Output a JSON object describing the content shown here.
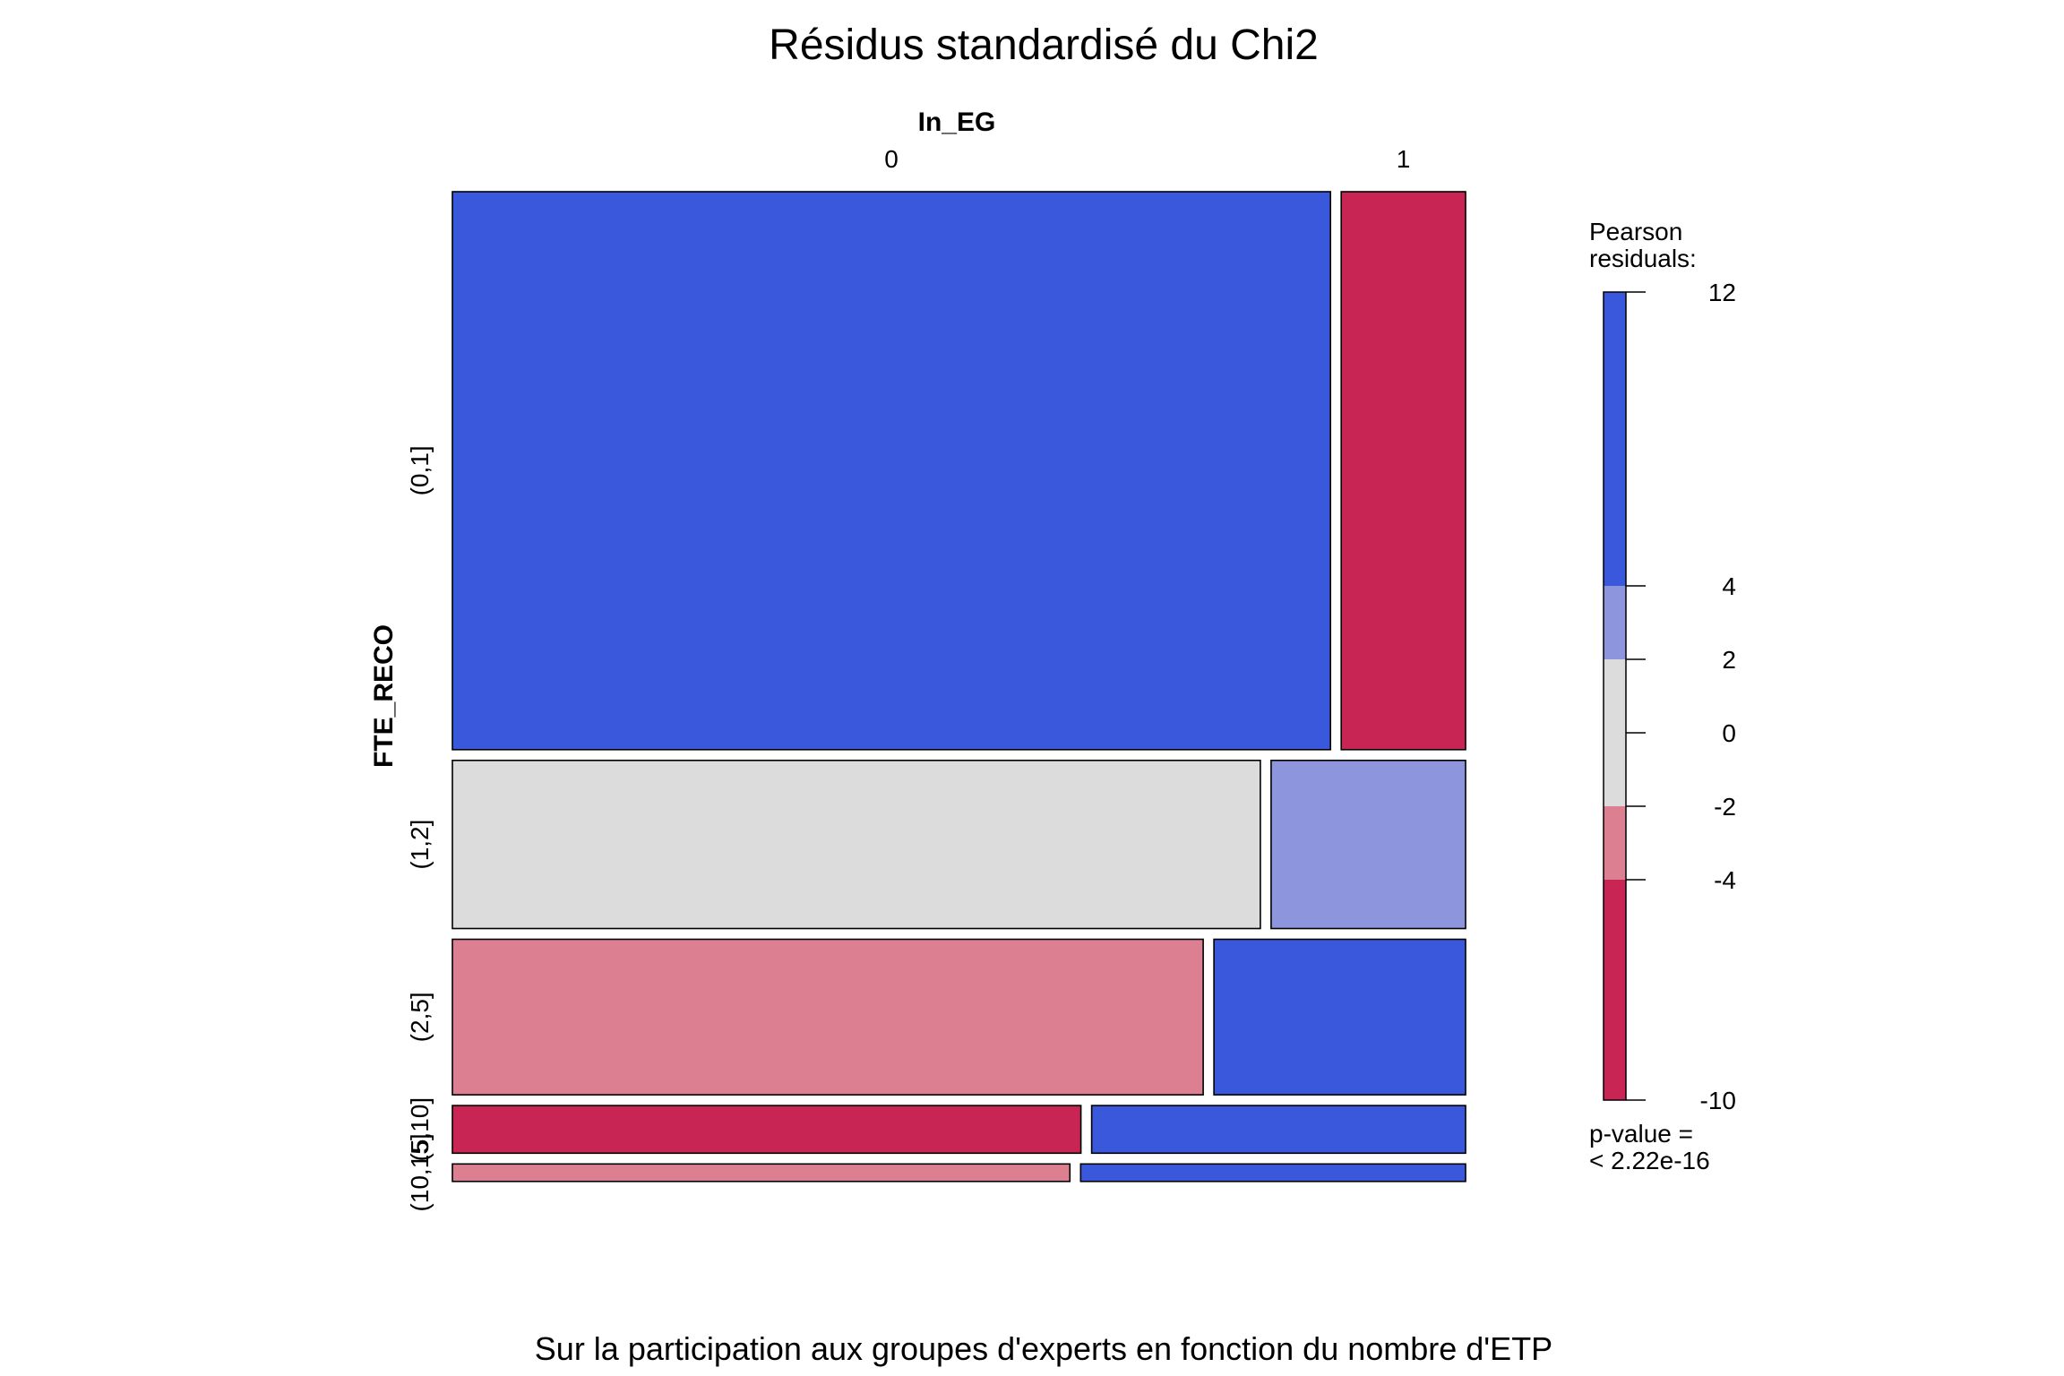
{
  "chart_data": {
    "type": "mosaic",
    "title": "Résidus standardisé du Chi2",
    "subtitle": "Sur la participation aux groupes d'experts en fonction du nombre d'ETP",
    "column_variable": "In_EG",
    "row_variable": "FTE_RECO",
    "columns": [
      "0",
      "1"
    ],
    "rows": [
      "(0,1]",
      "(1,2]",
      "(2,5]",
      "(5,10]",
      "(10,15]"
    ],
    "row_proportions": [
      0.574,
      0.173,
      0.16,
      0.049,
      0.018
    ],
    "col_share_in_row": [
      [
        0.876,
        0.124
      ],
      [
        0.806,
        0.194
      ],
      [
        0.749,
        0.251
      ],
      [
        0.627,
        0.373
      ],
      [
        0.616,
        0.384
      ]
    ],
    "residual_bin": [
      [
        "pos_strong",
        "neg_strong"
      ],
      [
        "neutral",
        "pos_mid"
      ],
      [
        "neg_mid",
        "pos_strong"
      ],
      [
        "neg_strong",
        "pos_strong"
      ],
      [
        "neg_mid",
        "pos_strong"
      ]
    ],
    "legend": {
      "title_line1": "Pearson",
      "title_line2": "residuals:",
      "range": [
        -10,
        12
      ],
      "ticks": [
        "12",
        "4",
        "2",
        "0",
        "-2",
        "-4",
        "-10"
      ],
      "tick_values": [
        12,
        4,
        2,
        0,
        -2,
        -4,
        -10
      ],
      "bands": [
        {
          "from": 4,
          "to": 12,
          "bin": "pos_strong"
        },
        {
          "from": 2,
          "to": 4,
          "bin": "pos_mid"
        },
        {
          "from": -2,
          "to": 2,
          "bin": "neutral"
        },
        {
          "from": -4,
          "to": -2,
          "bin": "neg_mid"
        },
        {
          "from": -10,
          "to": -4,
          "bin": "neg_strong"
        }
      ],
      "pvalue_line1": "p-value =",
      "pvalue_line2": "< 2.22e-16"
    },
    "colors": {
      "pos_strong": "#3A58DC",
      "pos_mid": "#8D96DC",
      "neutral": "#DCDCDC",
      "neg_mid": "#DC7F91",
      "neg_strong": "#C82454"
    }
  }
}
